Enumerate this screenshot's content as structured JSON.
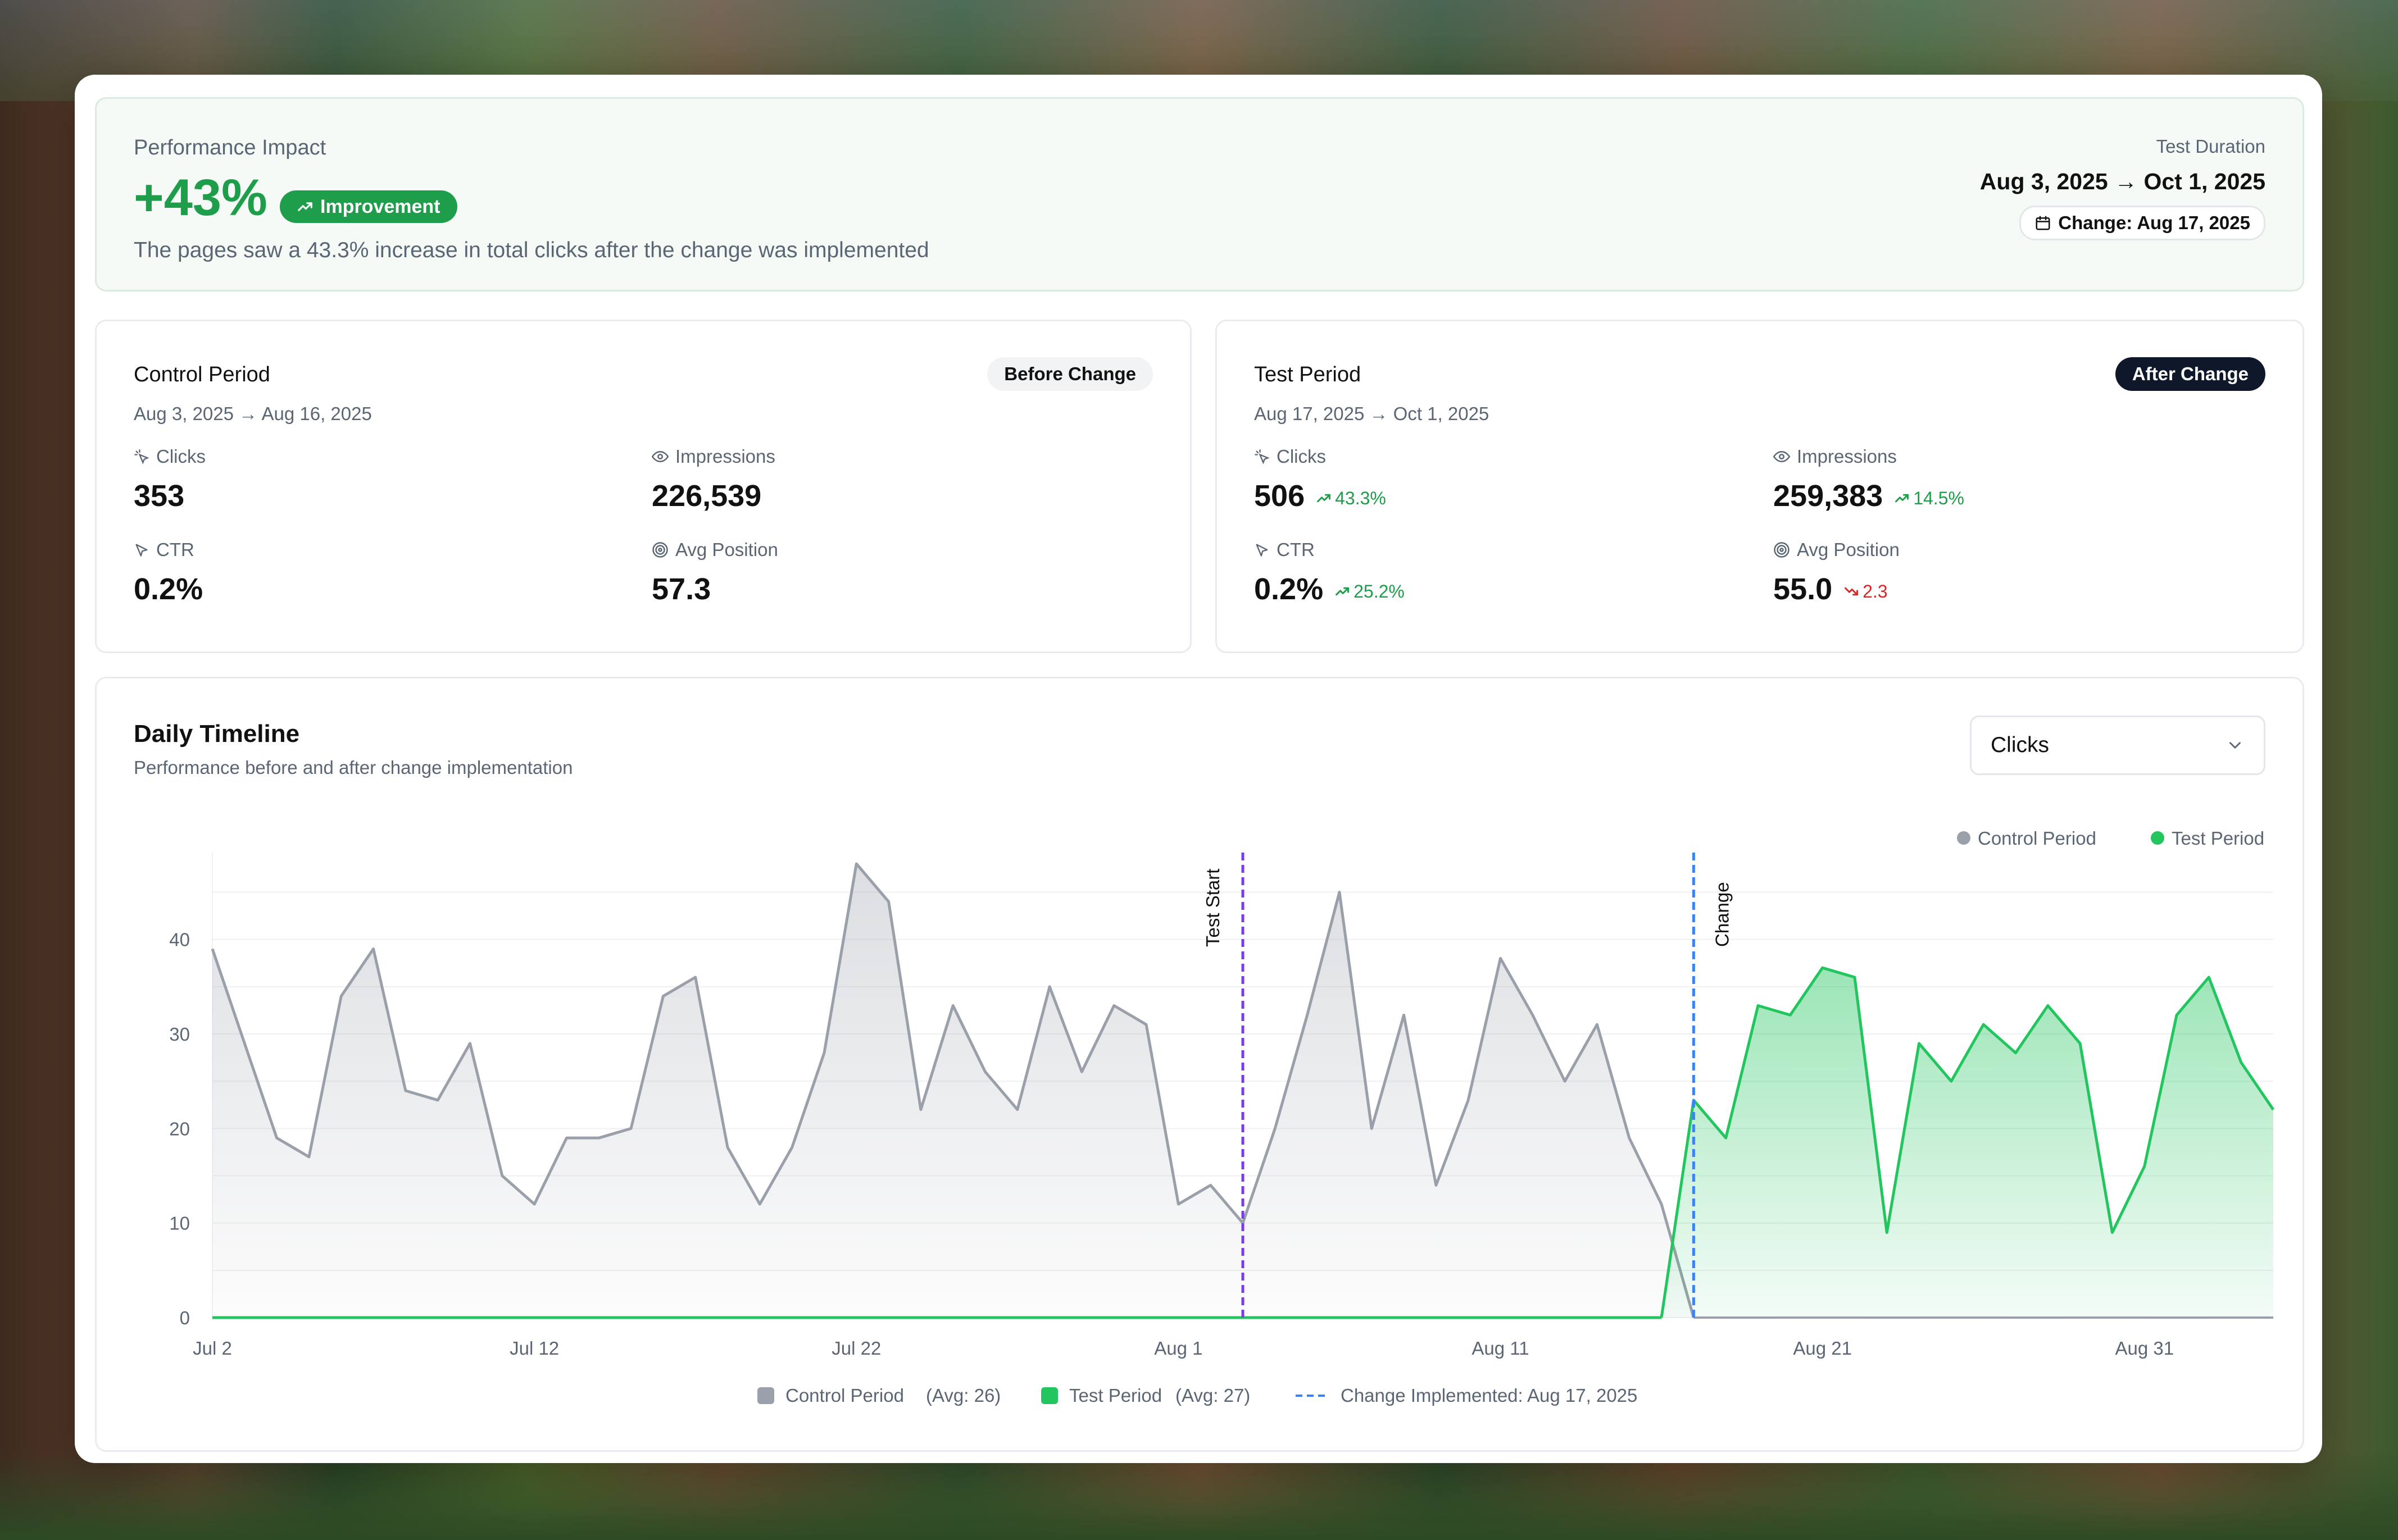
{
  "impact": {
    "label": "Performance Impact",
    "value": "+43%",
    "badge": "Improvement",
    "description": "The pages saw a 43.3% increase in total clicks after the change was implemented",
    "duration_label": "Test Duration",
    "duration_range": "Aug 3, 2025 → Oct 1, 2025",
    "change_chip": "Change: Aug 17, 2025"
  },
  "control": {
    "title": "Control Period",
    "tag": "Before Change",
    "dates": "Aug 3, 2025 → Aug 16, 2025",
    "clicks_label": "Clicks",
    "clicks": "353",
    "impressions_label": "Impressions",
    "impressions": "226,539",
    "ctr_label": "CTR",
    "ctr": "0.2%",
    "position_label": "Avg Position",
    "position": "57.3"
  },
  "test": {
    "title": "Test Period",
    "tag": "After Change",
    "dates": "Aug 17, 2025 → Oct 1, 2025",
    "clicks_label": "Clicks",
    "clicks": "506",
    "clicks_delta": "43.3%",
    "impressions_label": "Impressions",
    "impressions": "259,383",
    "impressions_delta": "14.5%",
    "ctr_label": "CTR",
    "ctr": "0.2%",
    "ctr_delta": "25.2%",
    "position_label": "Avg Position",
    "position": "55.0",
    "position_delta": "2.3"
  },
  "timeline": {
    "title": "Daily Timeline",
    "subtitle": "Performance before and after change implementation",
    "metric_select": "Clicks",
    "legend_top": [
      "Control Period",
      "Test Period"
    ],
    "legend_bottom": {
      "control": "Control Period",
      "control_avg": "(Avg: 26)",
      "test": "Test Period",
      "test_avg": "(Avg: 27)",
      "change": "Change Implemented: Aug 17, 2025"
    },
    "marker_test_start": "Test Start",
    "marker_change": "Change"
  },
  "colors": {
    "control": "#9aa0aa",
    "test": "#22c55e",
    "test_start_line": "#7c3aed",
    "change_line": "#3b82f6"
  },
  "chart_data": {
    "type": "area",
    "ylim": [
      0,
      48
    ],
    "y_ticks": [
      0,
      10,
      20,
      30,
      40
    ],
    "x_ticks": [
      "Jul 2",
      "Jul 12",
      "Jul 22",
      "Aug 1",
      "Aug 11",
      "Aug 21",
      "Aug 31"
    ],
    "x_tick_days": [
      0,
      10,
      20,
      30,
      40,
      50,
      60
    ],
    "x_days_max": 64,
    "test_start_day": 32,
    "change_day": 46,
    "series": [
      {
        "name": "Control Period",
        "x_days": [
          0,
          1,
          2,
          3,
          4,
          5,
          6,
          7,
          8,
          9,
          10,
          11,
          12,
          13,
          14,
          15,
          16,
          17,
          18,
          19,
          20,
          21,
          22,
          23,
          24,
          25,
          26,
          27,
          28,
          29,
          30,
          31,
          32,
          33,
          34,
          35,
          36,
          37,
          38,
          39,
          40,
          41,
          42,
          43,
          44,
          45,
          46
        ],
        "values": [
          39,
          29,
          19,
          17,
          34,
          39,
          24,
          23,
          29,
          15,
          12,
          19,
          19,
          20,
          34,
          36,
          18,
          12,
          18,
          28,
          48,
          44,
          22,
          33,
          26,
          22,
          35,
          26,
          33,
          31,
          12,
          14,
          10,
          20,
          32,
          45,
          20,
          32,
          14,
          23,
          38,
          32,
          25,
          31,
          19,
          12,
          0
        ]
      },
      {
        "name": "Test Period",
        "x_days": [
          45,
          46,
          47,
          48,
          49,
          50,
          51,
          52,
          53,
          54,
          55,
          56,
          57,
          58,
          59,
          60,
          61,
          62,
          63,
          64
        ],
        "values": [
          0,
          23,
          19,
          33,
          32,
          37,
          36,
          9,
          29,
          25,
          31,
          28,
          33,
          29,
          9,
          16,
          32,
          36,
          27,
          22
        ]
      }
    ]
  }
}
